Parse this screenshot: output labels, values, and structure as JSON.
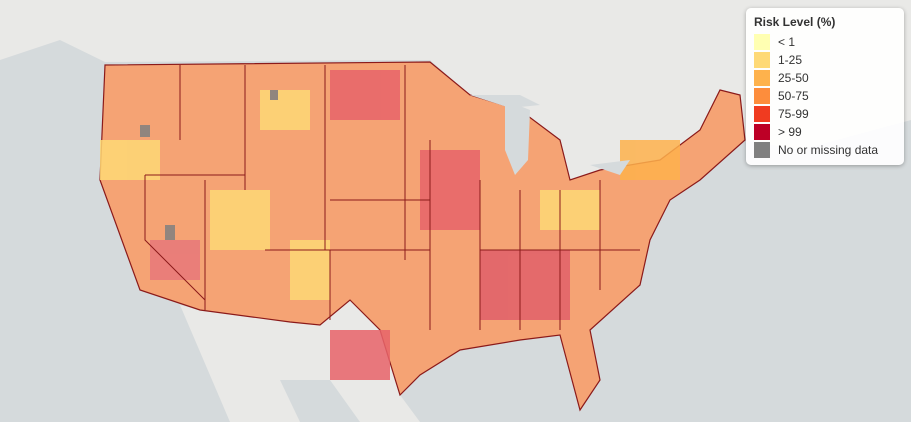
{
  "legend": {
    "title": "Risk Level (%)",
    "items": [
      {
        "label": "< 1",
        "color": "#ffffb2"
      },
      {
        "label": "1-25",
        "color": "#fed976"
      },
      {
        "label": "25-50",
        "color": "#feb24c"
      },
      {
        "label": "50-75",
        "color": "#fd8d3c"
      },
      {
        "label": "75-99",
        "color": "#f03b20"
      },
      {
        "label": "> 99",
        "color": "#bd0026"
      },
      {
        "label": "No or missing data",
        "color": "#808080"
      }
    ]
  }
}
